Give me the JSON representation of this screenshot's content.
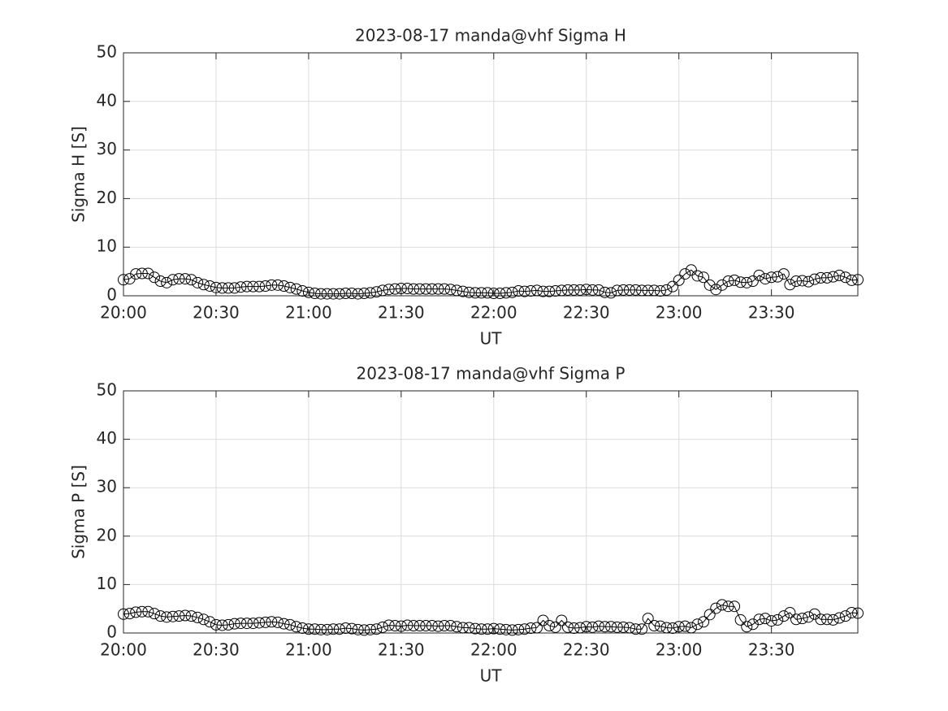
{
  "chart_data": [
    {
      "type": "line",
      "title": "2023-08-17  manda@vhf Sigma H",
      "x_label": "UT",
      "y_label": "Sigma H [S]",
      "marker": "circle",
      "color": "#000000",
      "grid": true,
      "x": [
        1200,
        1202,
        1204,
        1206,
        1208,
        1210,
        1212,
        1214,
        1216,
        1218,
        1220,
        1222,
        1224,
        1226,
        1228,
        1230,
        1232,
        1234,
        1236,
        1238,
        1240,
        1242,
        1244,
        1246,
        1248,
        1250,
        1252,
        1254,
        1256,
        1258,
        1260,
        1262,
        1264,
        1266,
        1268,
        1270,
        1272,
        1274,
        1276,
        1278,
        1280,
        1282,
        1284,
        1286,
        1288,
        1290,
        1292,
        1294,
        1296,
        1298,
        1300,
        1302,
        1304,
        1306,
        1308,
        1310,
        1312,
        1314,
        1316,
        1318,
        1320,
        1322,
        1324,
        1326,
        1328,
        1330,
        1332,
        1334,
        1336,
        1338,
        1340,
        1342,
        1344,
        1346,
        1348,
        1350,
        1352,
        1354,
        1356,
        1358,
        1360,
        1362,
        1364,
        1366,
        1368,
        1370,
        1372,
        1374,
        1376,
        1378,
        1380,
        1382,
        1384,
        1386,
        1388,
        1390,
        1392,
        1394,
        1396,
        1398,
        1400,
        1402,
        1404,
        1406,
        1408,
        1410,
        1412,
        1414,
        1416,
        1418,
        1420,
        1422,
        1424,
        1426,
        1428,
        1430,
        1432,
        1434,
        1436,
        1438
      ],
      "values": [
        3.3,
        3.5,
        4.5,
        4.6,
        4.6,
        3.8,
        3.0,
        2.7,
        3.3,
        3.5,
        3.5,
        3.3,
        2.7,
        2.3,
        2.0,
        1.7,
        1.6,
        1.6,
        1.6,
        1.8,
        1.9,
        1.9,
        1.9,
        2.0,
        2.2,
        2.2,
        2.0,
        1.7,
        1.4,
        1.0,
        0.7,
        0.5,
        0.4,
        0.4,
        0.4,
        0.4,
        0.5,
        0.5,
        0.4,
        0.5,
        0.6,
        0.8,
        1.1,
        1.3,
        1.4,
        1.5,
        1.5,
        1.4,
        1.4,
        1.4,
        1.4,
        1.4,
        1.4,
        1.3,
        1.1,
        0.9,
        0.7,
        0.6,
        0.6,
        0.6,
        0.5,
        0.5,
        0.6,
        0.7,
        1.0,
        0.9,
        1.0,
        1.1,
        0.9,
        0.9,
        1.0,
        1.1,
        1.2,
        1.2,
        1.2,
        1.3,
        1.2,
        1.2,
        0.7,
        0.6,
        1.1,
        1.2,
        1.2,
        1.2,
        1.1,
        1.1,
        1.1,
        1.0,
        1.2,
        1.9,
        3.2,
        4.5,
        5.3,
        4.1,
        3.8,
        2.2,
        1.3,
        2.2,
        3.0,
        3.2,
        2.8,
        2.7,
        3.0,
        4.2,
        3.5,
        3.8,
        3.9,
        4.5,
        2.3,
        3.0,
        3.1,
        2.9,
        3.4,
        3.7,
        3.7,
        3.9,
        4.2,
        3.8,
        3.2,
        3.3
      ],
      "xlim": [
        1200,
        1438
      ],
      "xticks": [
        {
          "value": 1200,
          "label": "20:00"
        },
        {
          "value": 1230,
          "label": "20:30"
        },
        {
          "value": 1260,
          "label": "21:00"
        },
        {
          "value": 1290,
          "label": "21:30"
        },
        {
          "value": 1320,
          "label": "22:00"
        },
        {
          "value": 1350,
          "label": "22:30"
        },
        {
          "value": 1380,
          "label": "23:00"
        },
        {
          "value": 1410,
          "label": "23:30"
        }
      ],
      "ylim": [
        0,
        50
      ],
      "yticks": [
        0,
        10,
        20,
        30,
        40,
        50
      ]
    },
    {
      "type": "line",
      "title": "2023-08-17  manda@vhf Sigma P",
      "x_label": "UT",
      "y_label": "Sigma P [S]",
      "marker": "circle",
      "color": "#000000",
      "grid": true,
      "x": [
        1200,
        1202,
        1204,
        1206,
        1208,
        1210,
        1212,
        1214,
        1216,
        1218,
        1220,
        1222,
        1224,
        1226,
        1228,
        1230,
        1232,
        1234,
        1236,
        1238,
        1240,
        1242,
        1244,
        1246,
        1248,
        1250,
        1252,
        1254,
        1256,
        1258,
        1260,
        1262,
        1264,
        1266,
        1268,
        1270,
        1272,
        1274,
        1276,
        1278,
        1280,
        1282,
        1284,
        1286,
        1288,
        1290,
        1292,
        1294,
        1296,
        1298,
        1300,
        1302,
        1304,
        1306,
        1308,
        1310,
        1312,
        1314,
        1316,
        1318,
        1320,
        1322,
        1324,
        1326,
        1328,
        1330,
        1332,
        1334,
        1336,
        1338,
        1340,
        1342,
        1344,
        1346,
        1348,
        1350,
        1352,
        1354,
        1356,
        1358,
        1360,
        1362,
        1364,
        1366,
        1368,
        1370,
        1372,
        1374,
        1376,
        1378,
        1380,
        1382,
        1384,
        1386,
        1388,
        1390,
        1392,
        1394,
        1396,
        1398,
        1400,
        1402,
        1404,
        1406,
        1408,
        1410,
        1412,
        1414,
        1416,
        1418,
        1420,
        1422,
        1424,
        1426,
        1428,
        1430,
        1432,
        1434,
        1436,
        1438
      ],
      "values": [
        3.9,
        4.0,
        4.3,
        4.4,
        4.4,
        4.0,
        3.5,
        3.3,
        3.4,
        3.5,
        3.6,
        3.5,
        3.2,
        2.8,
        2.3,
        1.7,
        1.6,
        1.7,
        1.9,
        2.0,
        2.0,
        2.0,
        2.1,
        2.2,
        2.3,
        2.2,
        1.9,
        1.7,
        1.3,
        1.0,
        0.8,
        0.8,
        0.7,
        0.7,
        0.8,
        0.8,
        1.0,
        0.9,
        0.7,
        0.6,
        0.7,
        0.8,
        1.2,
        1.6,
        1.5,
        1.4,
        1.6,
        1.5,
        1.5,
        1.5,
        1.5,
        1.4,
        1.5,
        1.5,
        1.3,
        1.1,
        1.1,
        0.9,
        0.8,
        0.8,
        0.9,
        0.8,
        0.7,
        0.6,
        0.7,
        0.8,
        1.0,
        1.1,
        2.6,
        1.5,
        1.2,
        2.6,
        1.2,
        1.0,
        1.1,
        1.3,
        1.2,
        1.4,
        1.3,
        1.3,
        1.2,
        1.2,
        1.1,
        0.8,
        0.8,
        3.0,
        1.5,
        1.4,
        1.1,
        1.0,
        1.3,
        1.4,
        1.1,
        1.8,
        2.3,
        3.8,
        5.1,
        5.8,
        5.5,
        5.5,
        2.7,
        1.3,
        1.8,
        2.8,
        3.0,
        2.5,
        2.7,
        3.5,
        4.2,
        2.8,
        3.0,
        3.3,
        3.9,
        2.8,
        2.8,
        2.7,
        3.1,
        3.5,
        4.2,
        4.1
      ],
      "xlim": [
        1200,
        1438
      ],
      "xticks": [
        {
          "value": 1200,
          "label": "20:00"
        },
        {
          "value": 1230,
          "label": "20:30"
        },
        {
          "value": 1260,
          "label": "21:00"
        },
        {
          "value": 1290,
          "label": "21:30"
        },
        {
          "value": 1320,
          "label": "22:00"
        },
        {
          "value": 1350,
          "label": "22:30"
        },
        {
          "value": 1380,
          "label": "23:00"
        },
        {
          "value": 1410,
          "label": "23:30"
        }
      ],
      "ylim": [
        0,
        50
      ],
      "yticks": [
        0,
        10,
        20,
        30,
        40,
        50
      ]
    }
  ]
}
